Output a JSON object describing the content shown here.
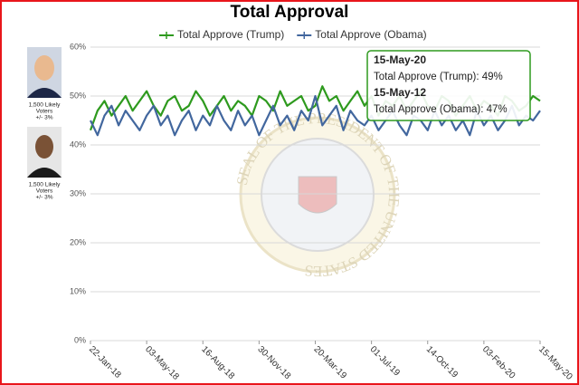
{
  "chart_data": {
    "type": "line",
    "title": "Total Approval",
    "categories": [
      "22-Jan-18",
      null,
      null,
      null,
      null,
      null,
      null,
      null,
      "03-May-18",
      null,
      null,
      null,
      null,
      null,
      null,
      null,
      "16-Aug-18",
      null,
      null,
      null,
      null,
      null,
      null,
      null,
      "30-Nov-18",
      null,
      null,
      null,
      null,
      null,
      null,
      null,
      "20-Mar-19",
      null,
      null,
      null,
      null,
      null,
      null,
      null,
      "01-Jul-19",
      null,
      null,
      null,
      null,
      null,
      null,
      null,
      "14-Oct-19",
      null,
      null,
      null,
      null,
      null,
      null,
      null,
      "03-Feb-20",
      null,
      null,
      null,
      null,
      null,
      null,
      null,
      "15-May-20"
    ],
    "series": [
      {
        "name": "Total Approve (Trump)",
        "color": "#2e9a1e",
        "values": [
          43,
          47,
          49,
          46,
          48,
          50,
          47,
          49,
          51,
          48,
          46,
          49,
          50,
          47,
          48,
          51,
          49,
          46,
          48,
          50,
          47,
          49,
          48,
          46,
          50,
          49,
          47,
          51,
          48,
          49,
          50,
          47,
          48,
          52,
          49,
          50,
          47,
          49,
          51,
          48,
          50,
          46,
          49,
          48,
          50,
          47,
          49,
          51,
          48,
          47,
          50,
          49,
          46,
          48,
          50,
          47,
          49,
          48,
          46,
          50,
          49,
          47,
          48,
          50,
          49
        ]
      },
      {
        "name": "Total Approve (Obama)",
        "color": "#42679e",
        "values": [
          45,
          42,
          46,
          48,
          44,
          47,
          45,
          43,
          46,
          48,
          44,
          46,
          42,
          45,
          47,
          43,
          46,
          44,
          48,
          45,
          43,
          47,
          44,
          46,
          42,
          45,
          48,
          44,
          46,
          43,
          47,
          45,
          50,
          44,
          46,
          48,
          43,
          47,
          45,
          44,
          46,
          43,
          45,
          47,
          44,
          42,
          46,
          45,
          43,
          47,
          44,
          46,
          43,
          45,
          42,
          47,
          44,
          46,
          43,
          45,
          48,
          44,
          46,
          45,
          47
        ]
      }
    ],
    "ylim": [
      0,
      60
    ],
    "yticks": [
      {
        "value": 0,
        "label": "0%"
      },
      {
        "value": 10,
        "label": "10%"
      },
      {
        "value": 20,
        "label": "20%"
      },
      {
        "value": 30,
        "label": "30%"
      },
      {
        "value": 40,
        "label": "40%"
      },
      {
        "value": 50,
        "label": "50%"
      },
      {
        "value": 60,
        "label": "60%"
      }
    ],
    "grid": true,
    "tooltip": [
      "15-May-20",
      "Total Approve (Trump): 49%",
      "15-May-12",
      "Total Approve (Obama): 47%"
    ]
  },
  "panels": [
    [
      "1,500 Likely",
      "Voters",
      "+/- 3%"
    ],
    [
      "1,500 Likely",
      "Voters",
      "+/- 3%"
    ]
  ],
  "seal_text": "SEAL OF THE PRESIDENT OF THE UNITED STATES"
}
